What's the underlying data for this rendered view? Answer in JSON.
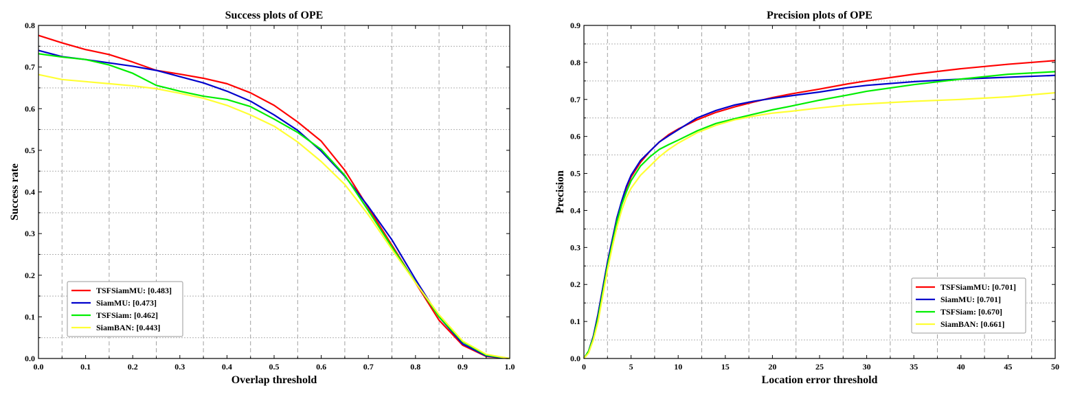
{
  "chart_data": [
    {
      "type": "line",
      "title": "Success plots of OPE",
      "xlabel": "Overlap threshold",
      "ylabel": "Success rate",
      "xlim": [
        0,
        1
      ],
      "ylim": [
        0,
        0.8
      ],
      "xticks": [
        "0.0",
        "0.1",
        "0.2",
        "0.3",
        "0.4",
        "0.5",
        "0.6",
        "0.7",
        "0.8",
        "0.9",
        "1.0"
      ],
      "yticks": [
        "0.0",
        "0.1",
        "0.2",
        "0.3",
        "0.4",
        "0.5",
        "0.6",
        "0.7",
        "0.8"
      ],
      "grid": true,
      "legend_position": "bottom-left",
      "series": [
        {
          "name": "TSFSiamMU: [0.483]",
          "color": "#ff0000",
          "x": [
            0,
            0.05,
            0.1,
            0.15,
            0.2,
            0.25,
            0.3,
            0.35,
            0.4,
            0.45,
            0.5,
            0.55,
            0.6,
            0.65,
            0.7,
            0.75,
            0.8,
            0.85,
            0.9,
            0.95,
            1.0
          ],
          "y": [
            0.776,
            0.758,
            0.742,
            0.73,
            0.712,
            0.692,
            0.683,
            0.673,
            0.66,
            0.638,
            0.608,
            0.568,
            0.522,
            0.452,
            0.362,
            0.272,
            0.182,
            0.092,
            0.032,
            0.005,
            0.0
          ]
        },
        {
          "name": "SiamMU: [0.473]",
          "color": "#0000cc",
          "x": [
            0,
            0.05,
            0.1,
            0.15,
            0.2,
            0.25,
            0.3,
            0.35,
            0.4,
            0.45,
            0.5,
            0.55,
            0.6,
            0.65,
            0.7,
            0.75,
            0.8,
            0.85,
            0.9,
            0.95,
            1.0
          ],
          "y": [
            0.74,
            0.725,
            0.718,
            0.71,
            0.702,
            0.692,
            0.677,
            0.662,
            0.642,
            0.618,
            0.585,
            0.548,
            0.498,
            0.438,
            0.365,
            0.285,
            0.19,
            0.1,
            0.035,
            0.006,
            0.0
          ]
        },
        {
          "name": "TSFSiam: [0.462]",
          "color": "#00ee00",
          "x": [
            0,
            0.05,
            0.1,
            0.15,
            0.2,
            0.25,
            0.3,
            0.35,
            0.4,
            0.45,
            0.5,
            0.55,
            0.6,
            0.65,
            0.7,
            0.75,
            0.8,
            0.85,
            0.9,
            0.95,
            1.0
          ],
          "y": [
            0.732,
            0.724,
            0.718,
            0.705,
            0.685,
            0.656,
            0.642,
            0.63,
            0.622,
            0.605,
            0.575,
            0.543,
            0.502,
            0.44,
            0.355,
            0.268,
            0.183,
            0.1,
            0.04,
            0.008,
            0.0
          ]
        },
        {
          "name": "SiamBAN: [0.443]",
          "color": "#ffff33",
          "x": [
            0,
            0.05,
            0.1,
            0.15,
            0.2,
            0.25,
            0.3,
            0.35,
            0.4,
            0.45,
            0.5,
            0.55,
            0.6,
            0.65,
            0.7,
            0.75,
            0.8,
            0.85,
            0.9,
            0.95,
            1.0
          ],
          "y": [
            0.682,
            0.67,
            0.665,
            0.66,
            0.655,
            0.648,
            0.637,
            0.625,
            0.608,
            0.585,
            0.558,
            0.52,
            0.473,
            0.418,
            0.345,
            0.262,
            0.182,
            0.105,
            0.042,
            0.01,
            0.0
          ]
        }
      ]
    },
    {
      "type": "line",
      "title": "Precision plots of OPE",
      "xlabel": "Location error threshold",
      "ylabel": "Precision",
      "xlim": [
        0,
        50
      ],
      "ylim": [
        0,
        0.9
      ],
      "xticks": [
        "0",
        "5",
        "10",
        "15",
        "20",
        "25",
        "30",
        "35",
        "40",
        "45",
        "50"
      ],
      "yticks": [
        "0.0",
        "0.1",
        "0.2",
        "0.3",
        "0.4",
        "0.5",
        "0.6",
        "0.7",
        "0.8",
        "0.9"
      ],
      "grid": true,
      "legend_position": "bottom-right",
      "series": [
        {
          "name": "TSFSiamMU: [0.701]",
          "color": "#ff0000",
          "x": [
            0,
            0.5,
            1,
            1.5,
            2,
            2.5,
            3,
            3.5,
            4,
            4.5,
            5,
            6,
            7,
            8,
            9,
            10,
            12,
            14,
            16,
            18,
            20,
            22,
            25,
            28,
            30,
            35,
            40,
            45,
            50
          ],
          "y": [
            0.0,
            0.02,
            0.06,
            0.12,
            0.19,
            0.26,
            0.32,
            0.38,
            0.42,
            0.46,
            0.49,
            0.53,
            0.56,
            0.585,
            0.605,
            0.62,
            0.645,
            0.665,
            0.68,
            0.693,
            0.705,
            0.715,
            0.728,
            0.742,
            0.75,
            0.768,
            0.783,
            0.795,
            0.805
          ]
        },
        {
          "name": "SiamMU: [0.701]",
          "color": "#0000cc",
          "x": [
            0,
            0.5,
            1,
            1.5,
            2,
            2.5,
            3,
            3.5,
            4,
            4.5,
            5,
            6,
            7,
            8,
            9,
            10,
            12,
            14,
            16,
            18,
            20,
            22,
            25,
            28,
            30,
            35,
            40,
            45,
            50
          ],
          "y": [
            0.0,
            0.02,
            0.06,
            0.12,
            0.19,
            0.26,
            0.32,
            0.38,
            0.425,
            0.465,
            0.495,
            0.535,
            0.56,
            0.585,
            0.602,
            0.618,
            0.65,
            0.67,
            0.685,
            0.695,
            0.703,
            0.71,
            0.72,
            0.732,
            0.738,
            0.748,
            0.755,
            0.76,
            0.765
          ]
        },
        {
          "name": "TSFSiam: [0.670]",
          "color": "#00ee00",
          "x": [
            0,
            0.5,
            1,
            1.5,
            2,
            2.5,
            3,
            3.5,
            4,
            4.5,
            5,
            6,
            7,
            8,
            9,
            10,
            12,
            14,
            16,
            18,
            20,
            22,
            25,
            28,
            30,
            35,
            40,
            45,
            50
          ],
          "y": [
            0.0,
            0.02,
            0.055,
            0.11,
            0.18,
            0.25,
            0.31,
            0.37,
            0.415,
            0.45,
            0.48,
            0.52,
            0.545,
            0.565,
            0.578,
            0.59,
            0.615,
            0.635,
            0.648,
            0.66,
            0.672,
            0.682,
            0.698,
            0.712,
            0.722,
            0.74,
            0.755,
            0.768,
            0.775
          ]
        },
        {
          "name": "SiamBAN: [0.661]",
          "color": "#ffff33",
          "x": [
            0,
            0.5,
            1,
            1.5,
            2,
            2.5,
            3,
            3.5,
            4,
            4.5,
            5,
            6,
            7,
            8,
            9,
            10,
            12,
            14,
            16,
            18,
            20,
            22,
            25,
            28,
            30,
            35,
            40,
            45,
            50
          ],
          "y": [
            0.0,
            0.015,
            0.05,
            0.1,
            0.17,
            0.24,
            0.3,
            0.355,
            0.4,
            0.435,
            0.46,
            0.495,
            0.52,
            0.545,
            0.565,
            0.582,
            0.61,
            0.63,
            0.645,
            0.655,
            0.663,
            0.668,
            0.677,
            0.685,
            0.688,
            0.695,
            0.7,
            0.707,
            0.718
          ]
        }
      ]
    }
  ]
}
